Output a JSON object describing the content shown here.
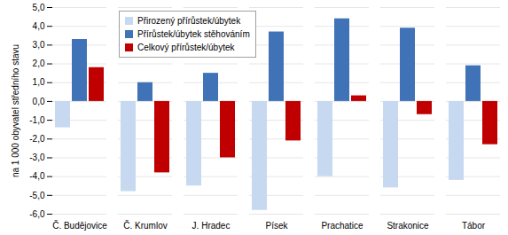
{
  "chart_data": {
    "type": "bar",
    "y_label": "na 1 000 obyvatel středního stavu",
    "categories": [
      "Č. Budějovice",
      "Č. Krumlov",
      "J. Hradec",
      "Písek",
      "Prachatice",
      "Strakonice",
      "Tábor"
    ],
    "series": [
      {
        "name": "Přirozený přírůstek/úbytek",
        "color": "#c6d9f1",
        "values": [
          -1.4,
          -4.8,
          -4.5,
          -5.8,
          -4.0,
          -4.6,
          -4.2
        ]
      },
      {
        "name": "Přírůstek/úbytek stěhováním",
        "color": "#3f72b6",
        "values": [
          3.3,
          1.0,
          1.5,
          3.7,
          4.4,
          3.9,
          1.9
        ]
      },
      {
        "name": "Celkový přírůstek/úbytek",
        "color": "#c00000",
        "values": [
          1.8,
          -3.8,
          -3.0,
          -2.1,
          0.3,
          -0.7,
          -2.3
        ]
      }
    ],
    "ylim": [
      -6,
      5
    ],
    "yticks": [
      {
        "value": -6,
        "label": "-6,0"
      },
      {
        "value": -5,
        "label": "-5,0"
      },
      {
        "value": -4,
        "label": "-4,0"
      },
      {
        "value": -3,
        "label": "-3,0"
      },
      {
        "value": -2,
        "label": "-2,0"
      },
      {
        "value": -1,
        "label": "-1,0"
      },
      {
        "value": 0,
        "label": "0,0"
      },
      {
        "value": 1,
        "label": "1,0"
      },
      {
        "value": 2,
        "label": "2,0"
      },
      {
        "value": 3,
        "label": "3,0"
      },
      {
        "value": 4,
        "label": "4,0"
      },
      {
        "value": 5,
        "label": "5,0"
      }
    ],
    "grid": true,
    "legend": "upper left"
  }
}
